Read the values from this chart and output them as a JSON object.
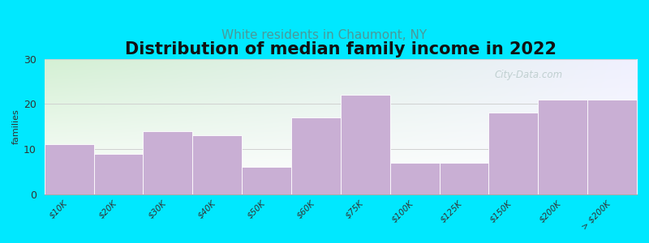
{
  "title": "Distribution of median family income in 2022",
  "subtitle": "White residents in Chaumont, NY",
  "ylabel": "families",
  "categories": [
    "$10K",
    "$20K",
    "$30K",
    "$40K",
    "$50K",
    "$60K",
    "$75K",
    "$100K",
    "$125K",
    "$150K",
    "$200K",
    "> $200K"
  ],
  "values": [
    11,
    9,
    14,
    13,
    6,
    17,
    22,
    7,
    7,
    18,
    21,
    21
  ],
  "bar_color": "#c9afd4",
  "bar_edge_color": "#ffffff",
  "background_outer": "#00e8ff",
  "plot_bg_left_color": "#d4f0d4",
  "plot_bg_right_color": "#f0f0ff",
  "ylim": [
    0,
    30
  ],
  "yticks": [
    0,
    10,
    20,
    30
  ],
  "title_fontsize": 15,
  "subtitle_fontsize": 11,
  "subtitle_color": "#4a9a9a",
  "watermark": "City-Data.com",
  "watermark_color": "#bbcccc",
  "grid_color": "#d0d0d0",
  "tick_label_fontsize": 7.5,
  "ylabel_fontsize": 8
}
